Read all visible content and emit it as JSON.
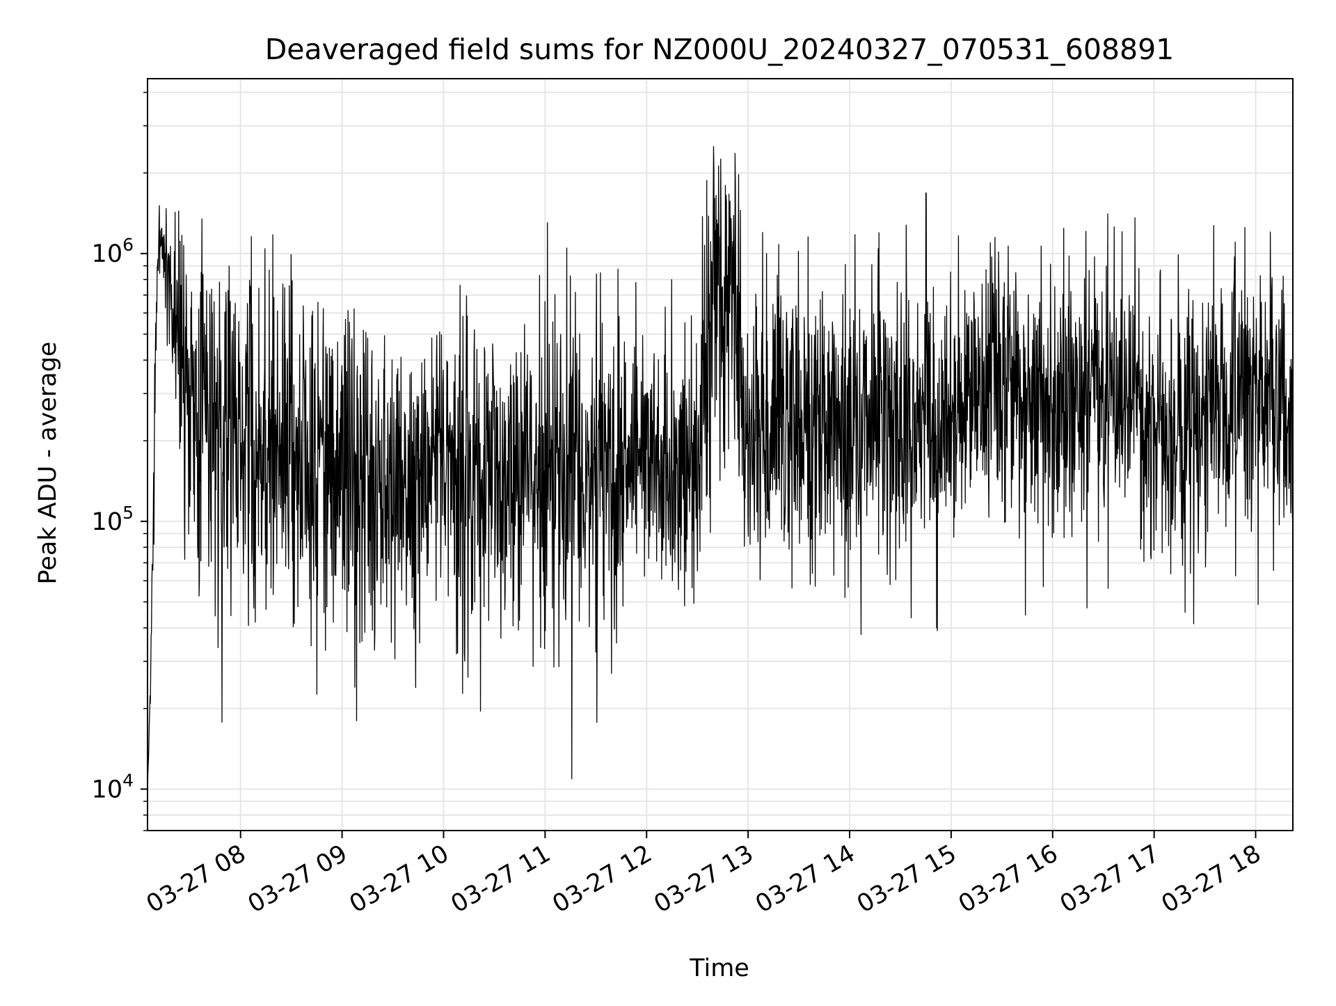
{
  "chart_data": {
    "type": "line",
    "title": "Deaveraged field sums for NZ000U_20240327_070531_608891",
    "xlabel": "Time",
    "ylabel": "Peak ADU - average",
    "yscale": "log",
    "ylim": [
      7000,
      4500000
    ],
    "xlim": [
      "2024-03-27 07:05",
      "2024-03-27 18:22"
    ],
    "grid": true,
    "line_color": "#000000",
    "grid_color": "#e6e6e6",
    "x_ticks": [
      {
        "t": "2024-03-27 08:00",
        "label": "03-27 08"
      },
      {
        "t": "2024-03-27 09:00",
        "label": "03-27 09"
      },
      {
        "t": "2024-03-27 10:00",
        "label": "03-27 10"
      },
      {
        "t": "2024-03-27 11:00",
        "label": "03-27 11"
      },
      {
        "t": "2024-03-27 12:00",
        "label": "03-27 12"
      },
      {
        "t": "2024-03-27 13:00",
        "label": "03-27 13"
      },
      {
        "t": "2024-03-27 14:00",
        "label": "03-27 14"
      },
      {
        "t": "2024-03-27 15:00",
        "label": "03-27 15"
      },
      {
        "t": "2024-03-27 16:00",
        "label": "03-27 16"
      },
      {
        "t": "2024-03-27 17:00",
        "label": "03-27 17"
      },
      {
        "t": "2024-03-27 18:00",
        "label": "03-27 18"
      }
    ],
    "y_ticks": [
      {
        "value": 10000,
        "base": "10",
        "exp": "4"
      },
      {
        "value": 100000,
        "base": "10",
        "exp": "5"
      },
      {
        "value": 1000000,
        "base": "10",
        "exp": "6"
      }
    ],
    "series": [
      {
        "x": [
          "2024-03-27 07:05",
          "2024-03-27 07:06",
          "2024-03-27 07:07",
          "2024-03-27 07:08",
          "2024-03-27 07:09",
          "2024-03-27 07:10",
          "2024-03-27 07:12",
          "2024-03-27 07:15",
          "2024-03-27 07:18",
          "2024-03-27 07:22",
          "2024-03-27 07:26",
          "2024-03-27 07:30",
          "2024-03-27 07:35",
          "2024-03-27 07:40",
          "2024-03-27 07:45",
          "2024-03-27 07:50",
          "2024-03-27 08:00",
          "2024-03-27 08:15",
          "2024-03-27 08:30",
          "2024-03-27 08:45",
          "2024-03-27 09:00",
          "2024-03-27 09:15",
          "2024-03-27 09:30",
          "2024-03-27 09:45",
          "2024-03-27 10:00",
          "2024-03-27 10:15",
          "2024-03-27 10:30",
          "2024-03-27 10:45",
          "2024-03-27 11:00",
          "2024-03-27 11:15",
          "2024-03-27 11:30",
          "2024-03-27 11:45",
          "2024-03-27 12:00",
          "2024-03-27 12:15",
          "2024-03-27 12:30",
          "2024-03-27 12:40",
          "2024-03-27 12:50",
          "2024-03-27 13:00",
          "2024-03-27 13:15",
          "2024-03-27 13:30",
          "2024-03-27 13:45",
          "2024-03-27 14:00",
          "2024-03-27 14:15",
          "2024-03-27 14:30",
          "2024-03-27 14:45",
          "2024-03-27 15:00",
          "2024-03-27 15:15",
          "2024-03-27 15:30",
          "2024-03-27 15:45",
          "2024-03-27 16:00",
          "2024-03-27 16:15",
          "2024-03-27 16:30",
          "2024-03-27 16:45",
          "2024-03-27 17:00",
          "2024-03-27 17:15",
          "2024-03-27 17:30",
          "2024-03-27 17:45",
          "2024-03-27 18:00",
          "2024-03-27 18:15",
          "2024-03-27 18:22"
        ],
        "center": [
          10000,
          15000,
          35000,
          60000,
          150000,
          600000,
          1300000,
          1000000,
          750000,
          600000,
          400000,
          280000,
          230000,
          220000,
          210000,
          200000,
          190000,
          180000,
          170000,
          165000,
          160000,
          150000,
          140000,
          130000,
          155000,
          150000,
          150000,
          145000,
          150000,
          150000,
          155000,
          160000,
          210000,
          150000,
          180000,
          700000,
          700000,
          250000,
          240000,
          230000,
          220000,
          210000,
          230000,
          240000,
          250000,
          270000,
          300000,
          320000,
          290000,
          260000,
          270000,
          300000,
          330000,
          260000,
          200000,
          270000,
          330000,
          350000,
          300000,
          270000
        ],
        "spread": [
          0.0,
          0.05,
          0.1,
          0.15,
          0.2,
          0.15,
          0.1,
          0.15,
          0.2,
          0.3,
          0.45,
          0.5,
          0.52,
          0.52,
          0.52,
          0.52,
          0.52,
          0.52,
          0.52,
          0.52,
          0.52,
          0.52,
          0.52,
          0.5,
          0.45,
          0.48,
          0.5,
          0.48,
          0.48,
          0.48,
          0.48,
          0.48,
          0.38,
          0.42,
          0.42,
          0.55,
          0.55,
          0.45,
          0.45,
          0.45,
          0.45,
          0.45,
          0.45,
          0.45,
          0.45,
          0.42,
          0.42,
          0.42,
          0.42,
          0.42,
          0.42,
          0.4,
          0.4,
          0.4,
          0.42,
          0.4,
          0.4,
          0.4,
          0.4,
          0.38
        ]
      }
    ]
  }
}
